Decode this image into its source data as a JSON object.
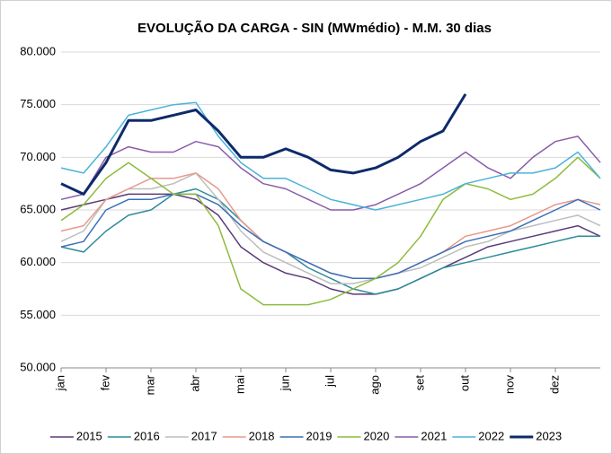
{
  "chart_data": {
    "type": "line",
    "title": "EVOLUÇÃO DA CARGA - SIN (MWmédio) - M.M. 30 dias",
    "categories": [
      "jan",
      null,
      "fev",
      null,
      "mar",
      null,
      "abr",
      null,
      "mai",
      null,
      "jun",
      null,
      "jul",
      null,
      "ago",
      null,
      "set",
      null,
      "out",
      null,
      "nov",
      null,
      "dez",
      null,
      null
    ],
    "ylim": [
      50000,
      80000
    ],
    "yticks": [
      {
        "value": 50000,
        "label": "50.000"
      },
      {
        "value": 55000,
        "label": "55.000"
      },
      {
        "value": 60000,
        "label": "60.000"
      },
      {
        "value": 65000,
        "label": "65.000"
      },
      {
        "value": 70000,
        "label": "70.000"
      },
      {
        "value": 75000,
        "label": "75.000"
      },
      {
        "value": 80000,
        "label": "80.000"
      }
    ],
    "grid": true,
    "legend": "bottom",
    "series": [
      {
        "name": "2015",
        "color": "#5b3a7a",
        "width": 1.5,
        "values": [
          65000,
          65500,
          66000,
          66500,
          66500,
          66500,
          66000,
          64500,
          61500,
          60000,
          59000,
          58500,
          57500,
          57000,
          57000,
          57500,
          58500,
          59500,
          60500,
          61500,
          62000,
          62500,
          63000,
          63500,
          62500
        ]
      },
      {
        "name": "2016",
        "color": "#2e8b9a",
        "width": 1.5,
        "values": [
          61500,
          61000,
          63000,
          64500,
          65000,
          66500,
          67000,
          66000,
          64000,
          62000,
          61000,
          59500,
          58500,
          57500,
          57000,
          57500,
          58500,
          59500,
          60000,
          60500,
          61000,
          61500,
          62000,
          62500,
          62500
        ]
      },
      {
        "name": "2017",
        "color": "#bdbdbd",
        "width": 1.5,
        "values": [
          62000,
          63000,
          66000,
          67000,
          67000,
          67500,
          68500,
          66000,
          63000,
          61000,
          60000,
          59000,
          58000,
          58000,
          58500,
          59000,
          59500,
          60500,
          61500,
          62000,
          63000,
          63500,
          64000,
          64500,
          63500
        ]
      },
      {
        "name": "2018",
        "color": "#e8998a",
        "width": 1.5,
        "values": [
          63000,
          63500,
          66000,
          67000,
          68000,
          68000,
          68500,
          67000,
          64000,
          62000,
          61000,
          60000,
          59000,
          58500,
          58500,
          59000,
          60000,
          61000,
          62500,
          63000,
          63500,
          64500,
          65500,
          66000,
          65500
        ]
      },
      {
        "name": "2019",
        "color": "#3b6fb6",
        "width": 1.5,
        "values": [
          61500,
          62000,
          65000,
          66000,
          66000,
          66500,
          66500,
          65500,
          63500,
          62000,
          61000,
          60000,
          59000,
          58500,
          58500,
          59000,
          60000,
          61000,
          62000,
          62500,
          63000,
          64000,
          65000,
          66000,
          65000
        ]
      },
      {
        "name": "2020",
        "color": "#8dbb3c",
        "width": 1.5,
        "values": [
          64000,
          65500,
          68000,
          69500,
          68000,
          66500,
          66500,
          63500,
          57500,
          56000,
          56000,
          56000,
          56500,
          57500,
          58500,
          60000,
          62500,
          66000,
          67500,
          67000,
          66000,
          66500,
          68000,
          70000,
          68000
        ]
      },
      {
        "name": "2021",
        "color": "#8a5ca8",
        "width": 1.5,
        "values": [
          66000,
          66500,
          70000,
          71000,
          70500,
          70500,
          71500,
          71000,
          69000,
          67500,
          67000,
          66000,
          65000,
          65000,
          65500,
          66500,
          67500,
          69000,
          70500,
          69000,
          68000,
          70000,
          71500,
          72000,
          69500
        ]
      },
      {
        "name": "2022",
        "color": "#4ab3d9",
        "width": 1.5,
        "values": [
          69000,
          68500,
          71000,
          74000,
          74500,
          75000,
          75200,
          72000,
          69500,
          68000,
          68000,
          67000,
          66000,
          65500,
          65000,
          65500,
          66000,
          66500,
          67500,
          68000,
          68500,
          68500,
          69000,
          70500,
          68000
        ]
      },
      {
        "name": "2023",
        "color": "#0e2a6b",
        "width": 3,
        "values": [
          67500,
          66500,
          69500,
          73500,
          73500,
          74000,
          74500,
          72500,
          70000,
          70000,
          70800,
          70000,
          68800,
          68500,
          69000,
          70000,
          71500,
          72500,
          76000,
          null,
          null,
          null,
          null,
          null,
          null
        ]
      }
    ]
  }
}
